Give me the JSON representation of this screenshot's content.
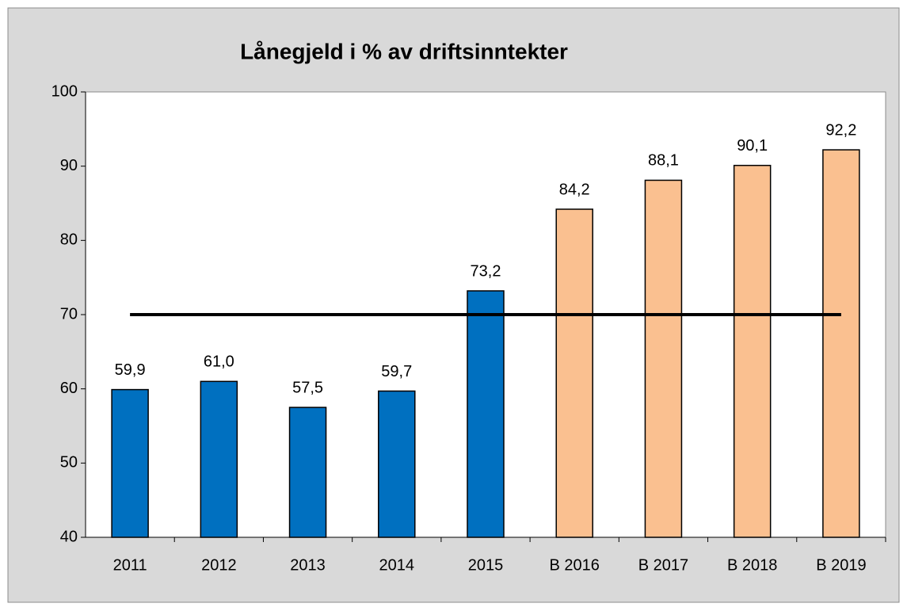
{
  "chart_data": {
    "type": "bar",
    "title": "Lånegjeld i % av driftsinntekter",
    "categories": [
      "2011",
      "2012",
      "2013",
      "2014",
      "2015",
      "B 2016",
      "B 2017",
      "B 2018",
      "B 2019"
    ],
    "series": [
      {
        "type": "bar",
        "values": [
          59.9,
          61.0,
          57.5,
          59.7,
          73.2,
          84.2,
          88.1,
          90.1,
          92.2
        ],
        "value_labels": [
          "59,9",
          "61,0",
          "57,5",
          "59,7",
          "73,2",
          "84,2",
          "88,1",
          "90,1",
          "92,2"
        ],
        "colors": [
          "#0070c0",
          "#0070c0",
          "#0070c0",
          "#0070c0",
          "#0070c0",
          "#fac090",
          "#fac090",
          "#fac090",
          "#fac090"
        ]
      },
      {
        "type": "line",
        "values": [
          70,
          70,
          70,
          70,
          70,
          70,
          70,
          70,
          70
        ],
        "color": "#000000"
      }
    ],
    "ylim": [
      40,
      100
    ],
    "yticks": [
      40,
      50,
      60,
      70,
      80,
      90,
      100
    ],
    "grid": false
  }
}
